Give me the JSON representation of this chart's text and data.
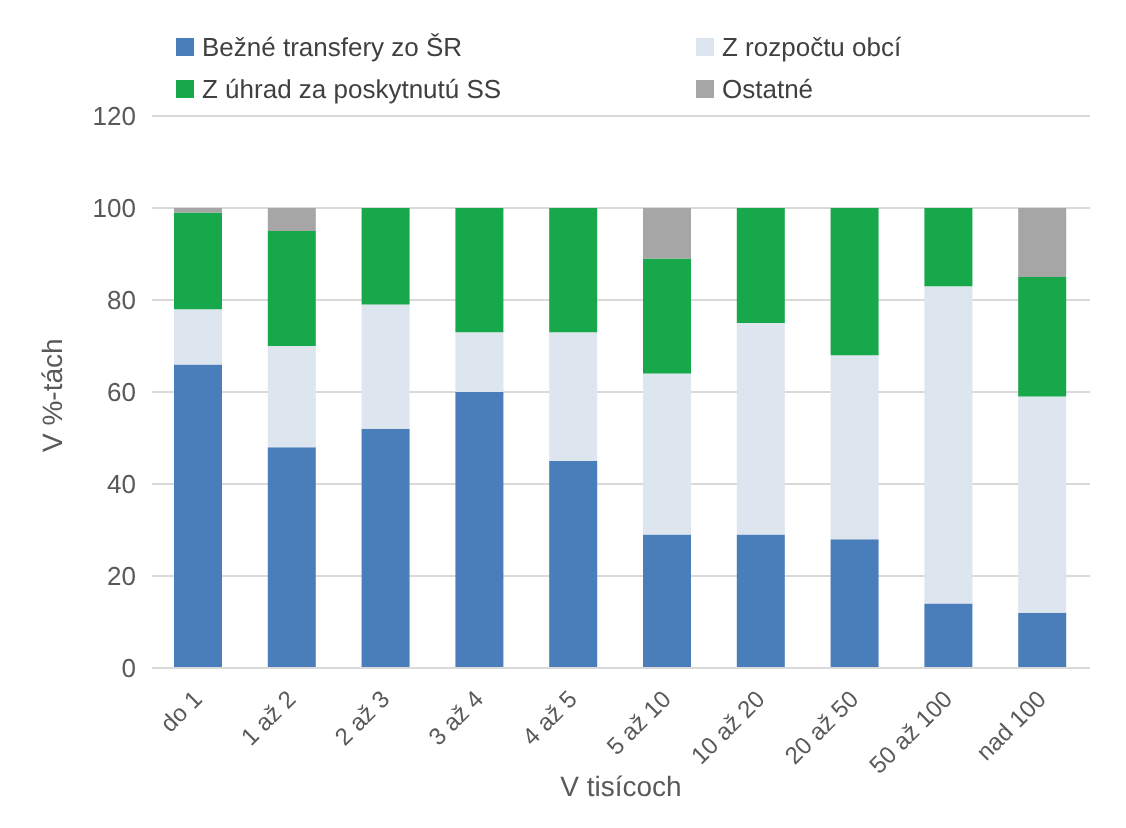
{
  "chart_data": {
    "type": "bar",
    "stacked": true,
    "xlabel": "V tisícoch",
    "ylabel": "V %-tách",
    "categories": [
      "do 1",
      "1 až 2",
      "2 až 3",
      "3 až 4",
      "4 až 5",
      "5 až 10",
      "10 až 20",
      "20 až 50",
      "50 až 100",
      "nad 100"
    ],
    "series": [
      {
        "name": "Bežné transfery zo ŠR",
        "color": "#4a7ebb",
        "values": [
          66,
          48,
          52,
          60,
          45,
          29,
          29,
          28,
          14,
          12
        ]
      },
      {
        "name": "Z rozpočtu obcí",
        "color": "#dde5ef",
        "values": [
          12,
          22,
          27,
          13,
          28,
          35,
          46,
          40,
          69,
          47
        ]
      },
      {
        "name": "Z úhrad za poskytnutú SS",
        "color": "#16a84a",
        "values": [
          21,
          25,
          21,
          27,
          27,
          25,
          25,
          32,
          17,
          26
        ]
      },
      {
        "name": "Ostatné",
        "color": "#a6a6a6",
        "values": [
          1,
          5,
          0,
          0,
          0,
          11,
          0,
          0,
          0,
          15
        ]
      }
    ],
    "ylim": [
      0,
      120
    ],
    "yticks": [
      0,
      20,
      40,
      60,
      80,
      100,
      120
    ],
    "grid": "y",
    "legend": "top"
  }
}
